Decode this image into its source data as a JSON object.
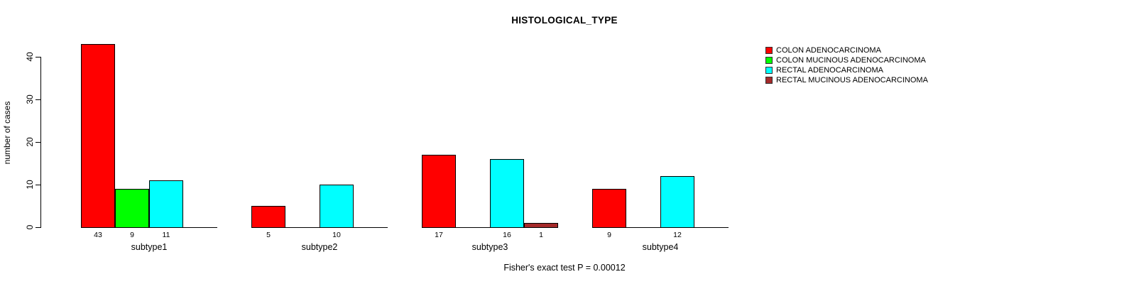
{
  "chart_data": {
    "type": "bar",
    "title": "HISTOLOGICAL_TYPE",
    "ylabel": "number of cases",
    "note": "Fisher's exact test P = 0.00012",
    "categories": [
      "subtype1",
      "subtype2",
      "subtype3",
      "subtype4"
    ],
    "series": [
      {
        "name": "COLON ADENOCARCINOMA",
        "color": "#FF0000",
        "values": [
          43,
          5,
          17,
          9
        ]
      },
      {
        "name": "COLON MUCINOUS ADENOCARCINOMA",
        "color": "#00FF00",
        "values": [
          9,
          0,
          0,
          0
        ]
      },
      {
        "name": "RECTAL ADENOCARCINOMA",
        "color": "#00FFFF",
        "values": [
          11,
          10,
          16,
          12
        ]
      },
      {
        "name": "RECTAL MUCINOUS ADENOCARCINOMA",
        "color": "#A52A2A",
        "values": [
          0,
          0,
          1,
          0
        ]
      }
    ],
    "yticks": [
      0,
      10,
      20,
      30,
      40
    ],
    "ylim": [
      0,
      40
    ],
    "grid": false,
    "legend_position": "top-right",
    "axis_color": "#000000",
    "bar_border_color": "#000000"
  }
}
